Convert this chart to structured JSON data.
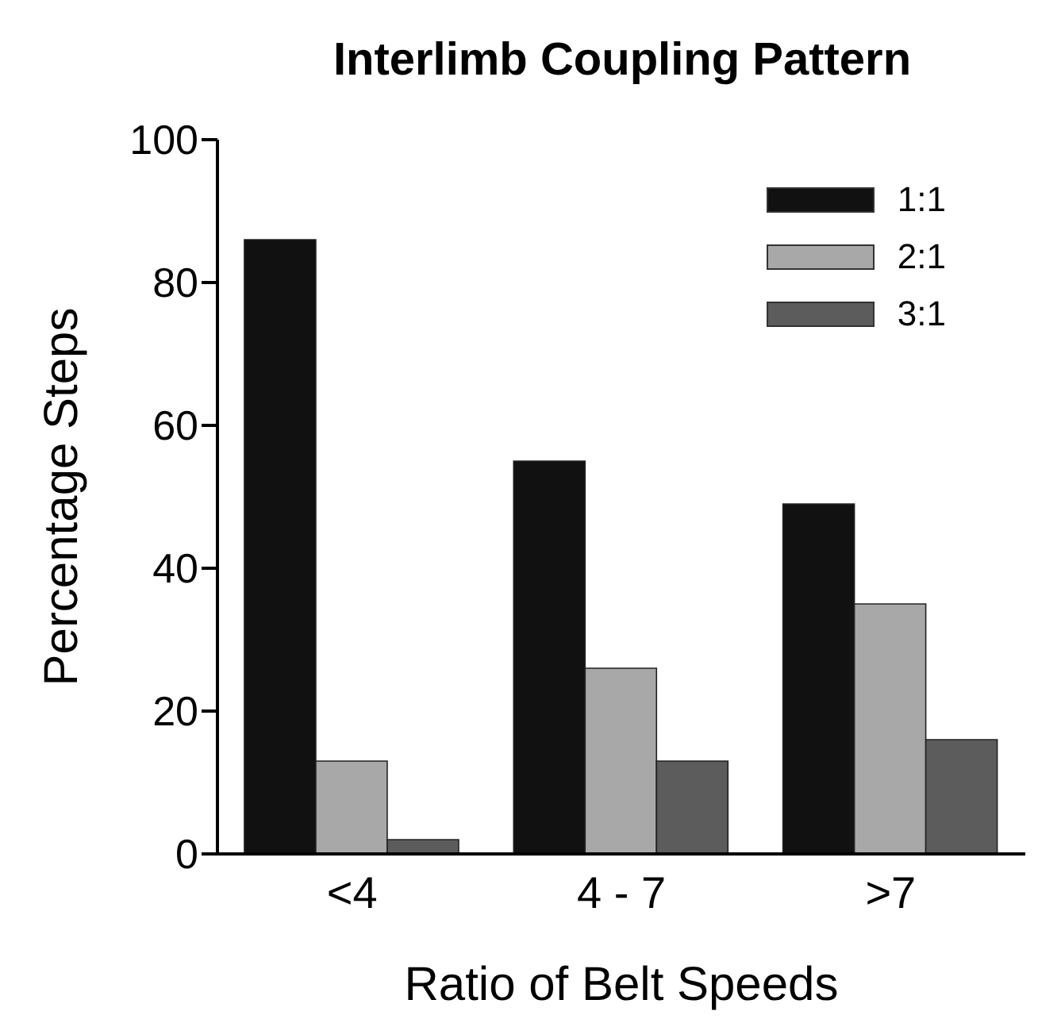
{
  "chart_data": {
    "type": "bar",
    "title": "Interlimb Coupling Pattern",
    "xlabel": "Ratio of Belt Speeds",
    "ylabel": "Percentage Steps",
    "categories": [
      "<4",
      "4 - 7",
      ">7"
    ],
    "series": [
      {
        "name": "1:1",
        "color": "#111111",
        "values": [
          86,
          55,
          49
        ]
      },
      {
        "name": "2:1",
        "color": "#a8a8a8",
        "values": [
          13,
          26,
          35
        ]
      },
      {
        "name": "3:1",
        "color": "#5c5c5c",
        "values": [
          2,
          13,
          16
        ]
      }
    ],
    "ylim": [
      0,
      100
    ],
    "yticks": [
      0,
      20,
      40,
      60,
      80,
      100
    ],
    "grid": false,
    "legend": "top right"
  }
}
